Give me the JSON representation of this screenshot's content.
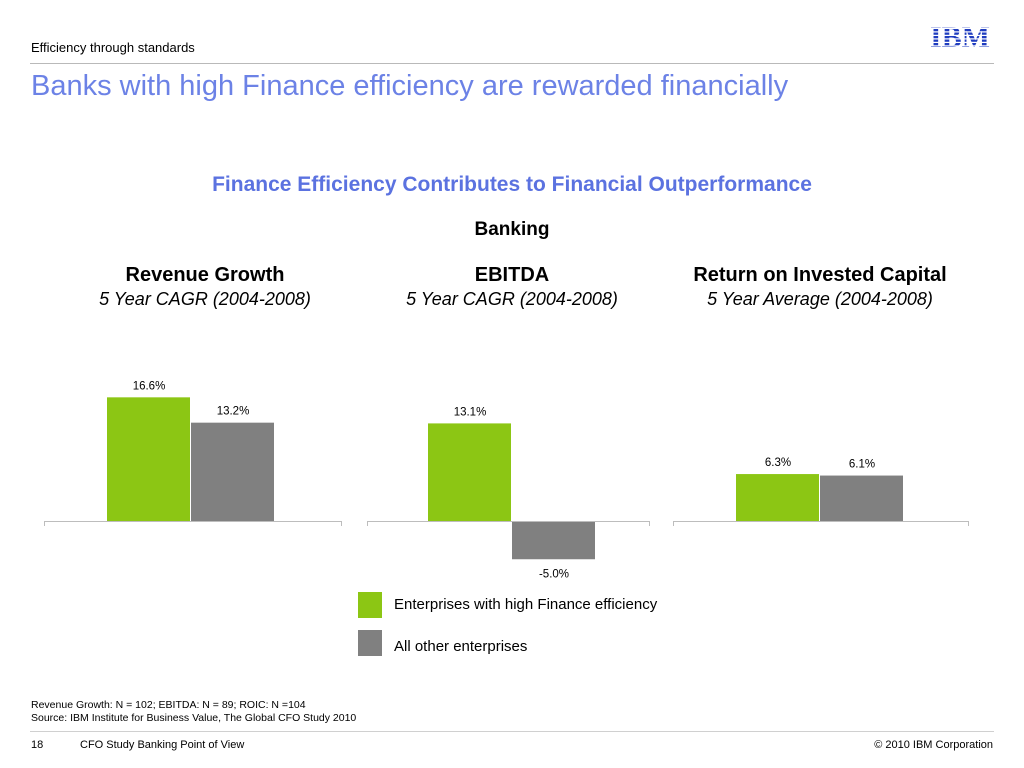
{
  "header": {
    "subtitle": "Efficiency through standards",
    "title": "Banks with high Finance efficiency are rewarded financially",
    "logo_text": "IBM"
  },
  "chart_header": {
    "title": "Finance Efficiency Contributes to Financial Outperformance",
    "subtitle": "Banking"
  },
  "colors": {
    "accent_title": "#6c82e6",
    "high_efficiency": "#8cc614",
    "other": "#808080",
    "logo": "#1f3cbf"
  },
  "chart_data": [
    {
      "type": "bar",
      "title": "Revenue Growth",
      "subtitle": "5 Year CAGR (2004-2008)",
      "series": [
        {
          "name": "Enterprises with high Finance efficiency",
          "values": [
            16.6
          ],
          "label": "16.6%"
        },
        {
          "name": "All other enterprises",
          "values": [
            13.2
          ],
          "label": "13.2%"
        }
      ]
    },
    {
      "type": "bar",
      "title": "EBITDA",
      "subtitle": "5 Year CAGR (2004-2008)",
      "series": [
        {
          "name": "Enterprises with high Finance efficiency",
          "values": [
            13.1
          ],
          "label": "13.1%"
        },
        {
          "name": "All other enterprises",
          "values": [
            -5.0
          ],
          "label": "-5.0%"
        }
      ]
    },
    {
      "type": "bar",
      "title": "Return on Invested Capital",
      "subtitle": "5 Year Average (2004-2008)",
      "series": [
        {
          "name": "Enterprises with high Finance efficiency",
          "values": [
            6.3
          ],
          "label": "6.3%"
        },
        {
          "name": "All other enterprises",
          "values": [
            6.1
          ],
          "label": "6.1%"
        }
      ]
    }
  ],
  "legend": [
    {
      "label": "Enterprises with high Finance efficiency"
    },
    {
      "label": "All other enterprises"
    }
  ],
  "footnote": {
    "line1": "Revenue Growth: N = 102; EBITDA: N = 89; ROIC: N =104",
    "line2": "Source: IBM Institute for Business Value, The Global CFO Study 2010"
  },
  "footer": {
    "page_number": "18",
    "text": "CFO Study Banking Point of View",
    "copyright": "© 2010 IBM Corporation"
  }
}
